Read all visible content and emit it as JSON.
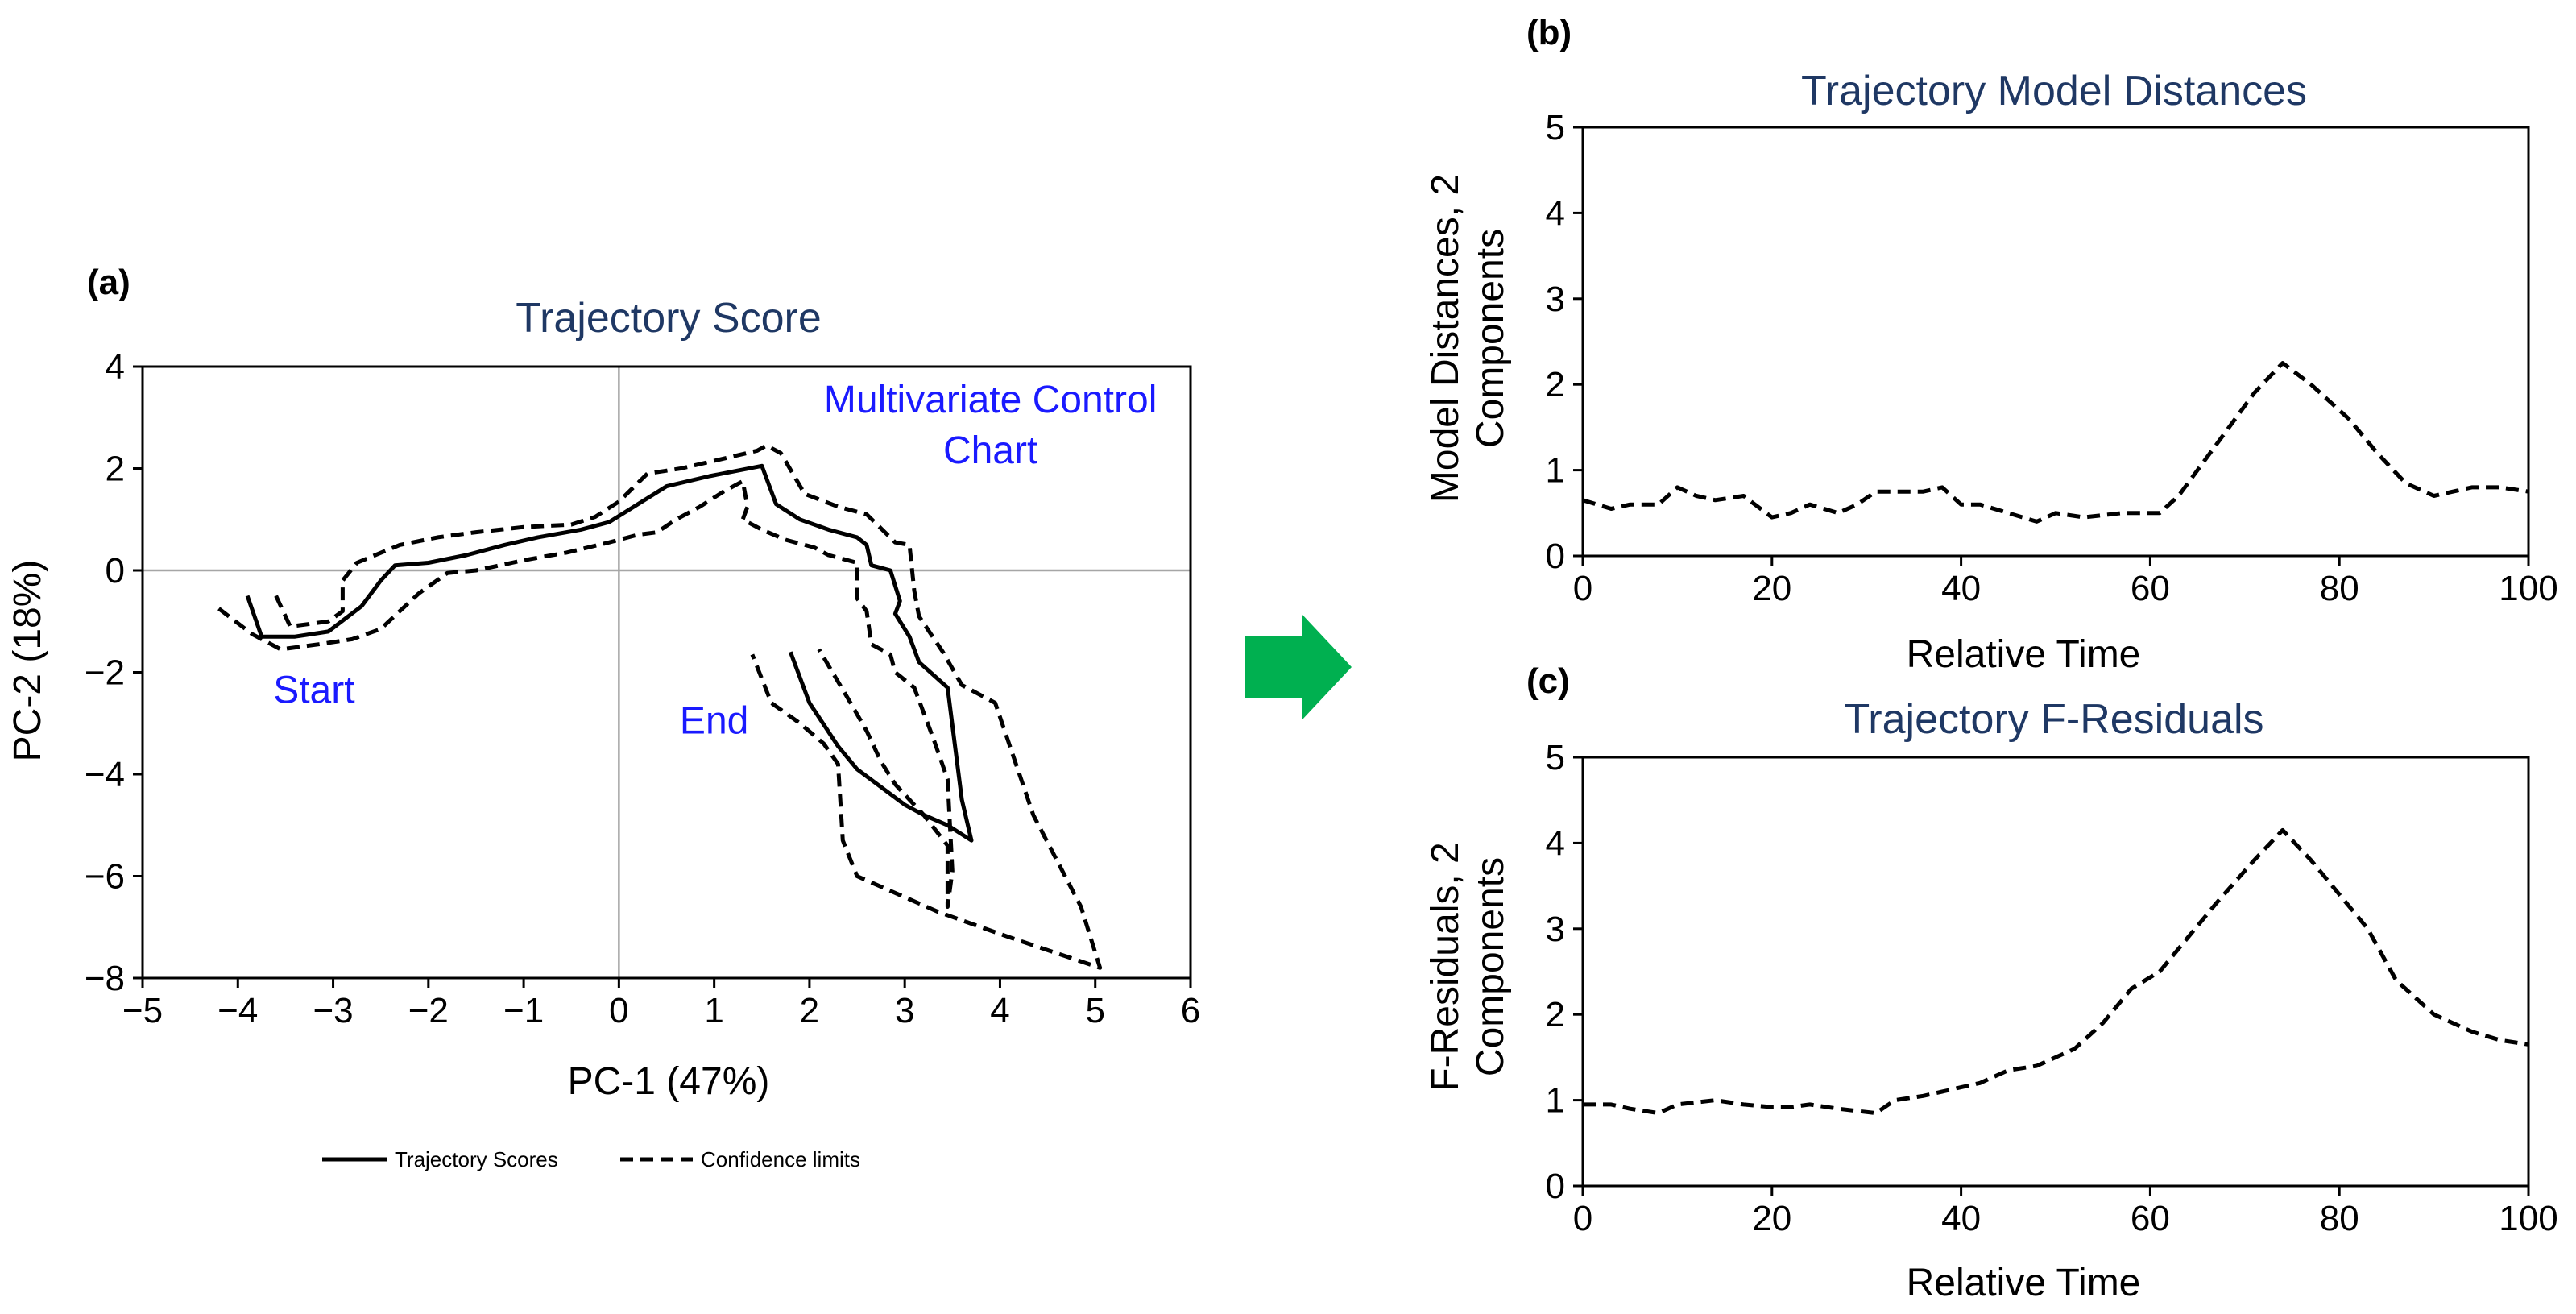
{
  "colors": {
    "title": "#1f3864",
    "annotation": "#1a1aff",
    "arrow": "#00b050",
    "line": "#000000",
    "zero_line": "#a6a6a6"
  },
  "arrow_icon": "green-right-arrow",
  "chart_data": [
    {
      "id": "a",
      "panel_label": "(a)",
      "type": "line",
      "title": "Trajectory Score",
      "xlabel": "PC-1 (47%)",
      "ylabel": "PC-2 (18%)",
      "xlim": [
        -5,
        6
      ],
      "ylim": [
        -8,
        4
      ],
      "xticks": [
        -5,
        -4,
        -3,
        -2,
        -1,
        0,
        1,
        2,
        3,
        4,
        5,
        6
      ],
      "yticks": [
        -8,
        -6,
        -4,
        -2,
        0,
        2,
        4
      ],
      "xtick_labels": [
        "−5",
        "−4",
        "−3",
        "−2",
        "−1",
        "0",
        "1",
        "2",
        "3",
        "4",
        "5",
        "6"
      ],
      "ytick_labels": [
        "−8",
        "−6",
        "−4",
        "−2",
        "0",
        "2",
        "4"
      ],
      "zero_lines": true,
      "annotations": [
        {
          "text": "Multivariate Control",
          "x": 3.9,
          "y": 3.1
        },
        {
          "text": "Chart",
          "x": 3.9,
          "y": 2.1
        },
        {
          "text": "Start",
          "x": -3.2,
          "y": -2.6
        },
        {
          "text": "End",
          "x": 1.0,
          "y": -3.2
        }
      ],
      "legend": {
        "position": "bottom",
        "items": [
          {
            "label": "Trajectory Scores",
            "style": "solid"
          },
          {
            "label": "Confidence limits",
            "style": "dashed"
          }
        ]
      },
      "series": [
        {
          "style": "solid",
          "points": [
            [
              -3.9,
              -0.5
            ],
            [
              -3.75,
              -1.3
            ],
            [
              -3.4,
              -1.3
            ],
            [
              -3.05,
              -1.2
            ],
            [
              -2.7,
              -0.7
            ],
            [
              -2.5,
              -0.2
            ],
            [
              -2.35,
              0.1
            ],
            [
              -2.0,
              0.15
            ],
            [
              -1.6,
              0.3
            ],
            [
              -1.2,
              0.5
            ],
            [
              -0.85,
              0.65
            ],
            [
              -0.4,
              0.8
            ],
            [
              -0.1,
              0.95
            ],
            [
              0.2,
              1.3
            ],
            [
              0.5,
              1.65
            ],
            [
              0.95,
              1.85
            ],
            [
              1.5,
              2.05
            ],
            [
              1.65,
              1.3
            ],
            [
              1.9,
              1.0
            ],
            [
              2.2,
              0.8
            ],
            [
              2.5,
              0.65
            ],
            [
              2.6,
              0.5
            ],
            [
              2.65,
              0.1
            ],
            [
              2.85,
              0.0
            ],
            [
              2.95,
              -0.6
            ],
            [
              2.9,
              -0.85
            ],
            [
              3.05,
              -1.3
            ],
            [
              3.15,
              -1.8
            ],
            [
              3.45,
              -2.3
            ],
            [
              3.6,
              -4.5
            ],
            [
              3.7,
              -5.3
            ],
            [
              3.45,
              -5.0
            ],
            [
              3.2,
              -4.8
            ],
            [
              3.0,
              -4.6
            ],
            [
              2.5,
              -3.9
            ],
            [
              2.3,
              -3.45
            ],
            [
              2.0,
              -2.6
            ],
            [
              1.8,
              -1.6
            ]
          ]
        },
        {
          "style": "dashed",
          "points": [
            [
              -3.6,
              -0.5
            ],
            [
              -3.45,
              -1.1
            ],
            [
              -3.05,
              -1.0
            ],
            [
              -2.9,
              -0.8
            ],
            [
              -2.9,
              -0.2
            ],
            [
              -2.75,
              0.15
            ],
            [
              -2.3,
              0.5
            ],
            [
              -1.9,
              0.65
            ],
            [
              -1.5,
              0.75
            ],
            [
              -1.0,
              0.85
            ],
            [
              -0.5,
              0.9
            ],
            [
              -0.25,
              1.05
            ],
            [
              0.0,
              1.35
            ],
            [
              0.3,
              1.9
            ],
            [
              0.65,
              2.0
            ],
            [
              1.0,
              2.15
            ],
            [
              1.45,
              2.35
            ],
            [
              1.55,
              2.45
            ],
            [
              1.7,
              2.3
            ],
            [
              1.95,
              1.5
            ],
            [
              2.3,
              1.25
            ],
            [
              2.6,
              1.1
            ],
            [
              2.9,
              0.55
            ],
            [
              3.05,
              0.5
            ],
            [
              3.1,
              -0.4
            ],
            [
              3.15,
              -0.9
            ],
            [
              3.4,
              -1.6
            ],
            [
              3.6,
              -2.25
            ],
            [
              3.95,
              -2.6
            ],
            [
              4.35,
              -4.8
            ],
            [
              4.85,
              -6.6
            ],
            [
              5.05,
              -7.8
            ],
            [
              4.1,
              -7.2
            ],
            [
              3.35,
              -6.7
            ],
            [
              2.5,
              -6.0
            ],
            [
              2.35,
              -5.3
            ],
            [
              2.3,
              -3.8
            ],
            [
              2.15,
              -3.4
            ],
            [
              1.9,
              -3.0
            ],
            [
              1.6,
              -2.6
            ],
            [
              1.4,
              -1.65
            ]
          ]
        },
        {
          "style": "dashed",
          "points": [
            [
              -4.2,
              -0.75
            ],
            [
              -3.85,
              -1.25
            ],
            [
              -3.55,
              -1.55
            ],
            [
              -3.15,
              -1.45
            ],
            [
              -2.8,
              -1.35
            ],
            [
              -2.5,
              -1.15
            ],
            [
              -2.3,
              -0.8
            ],
            [
              -2.1,
              -0.45
            ],
            [
              -1.8,
              -0.05
            ],
            [
              -1.5,
              0.0
            ],
            [
              -1.0,
              0.2
            ],
            [
              -0.55,
              0.35
            ],
            [
              -0.1,
              0.55
            ],
            [
              0.2,
              0.7
            ],
            [
              0.4,
              0.75
            ],
            [
              0.6,
              1.0
            ],
            [
              0.85,
              1.25
            ],
            [
              1.1,
              1.55
            ],
            [
              1.3,
              1.75
            ],
            [
              1.35,
              1.25
            ],
            [
              1.3,
              1.0
            ],
            [
              1.5,
              0.8
            ],
            [
              1.75,
              0.6
            ],
            [
              2.05,
              0.45
            ],
            [
              2.2,
              0.3
            ],
            [
              2.5,
              0.15
            ],
            [
              2.5,
              -0.55
            ],
            [
              2.6,
              -0.8
            ],
            [
              2.65,
              -1.45
            ],
            [
              2.85,
              -1.65
            ],
            [
              2.9,
              -2.0
            ],
            [
              3.1,
              -2.3
            ],
            [
              3.3,
              -3.3
            ],
            [
              3.45,
              -4.1
            ],
            [
              3.5,
              -5.9
            ],
            [
              3.45,
              -6.6
            ],
            [
              3.45,
              -5.4
            ],
            [
              3.2,
              -4.8
            ],
            [
              2.9,
              -4.2
            ],
            [
              2.75,
              -3.75
            ],
            [
              2.6,
              -3.15
            ],
            [
              2.4,
              -2.5
            ],
            [
              2.1,
              -1.55
            ]
          ]
        }
      ]
    },
    {
      "id": "b",
      "panel_label": "(b)",
      "type": "line",
      "title": "Trajectory Model Distances",
      "xlabel": "Relative Time",
      "ylabel": "Model Distances, 2 Components",
      "ylabel_lines": [
        "Model Distances, 2",
        "Components"
      ],
      "xlim": [
        0,
        100
      ],
      "ylim": [
        0,
        5
      ],
      "xticks": [
        0,
        20,
        40,
        60,
        80,
        100
      ],
      "yticks": [
        0,
        1,
        2,
        3,
        4,
        5
      ],
      "xtick_labels": [
        "0",
        "20",
        "40",
        "60",
        "80",
        "100"
      ],
      "ytick_labels": [
        "0",
        "1",
        "2",
        "3",
        "4",
        "5"
      ],
      "series": [
        {
          "style": "dashed",
          "x": [
            0,
            3,
            5,
            8,
            10,
            12,
            14,
            17,
            20,
            22,
            24,
            27,
            29,
            31,
            33,
            36,
            38,
            40,
            42,
            45,
            48,
            50,
            53,
            57,
            61,
            63,
            67,
            71,
            74,
            77,
            81,
            84,
            87,
            90,
            94,
            97,
            100
          ],
          "y": [
            0.65,
            0.55,
            0.6,
            0.6,
            0.8,
            0.7,
            0.65,
            0.7,
            0.45,
            0.5,
            0.6,
            0.5,
            0.6,
            0.75,
            0.75,
            0.75,
            0.8,
            0.6,
            0.6,
            0.5,
            0.4,
            0.5,
            0.45,
            0.5,
            0.5,
            0.7,
            1.3,
            1.9,
            2.25,
            2.0,
            1.6,
            1.2,
            0.85,
            0.7,
            0.8,
            0.8,
            0.75
          ]
        }
      ]
    },
    {
      "id": "c",
      "panel_label": "(c)",
      "type": "line",
      "title": "Trajectory F-Residuals",
      "xlabel": "Relative Time",
      "ylabel": "F-Residuals, 2 Components",
      "ylabel_lines": [
        "F-Residuals, 2",
        "Components"
      ],
      "xlim": [
        0,
        100
      ],
      "ylim": [
        0,
        5
      ],
      "xticks": [
        0,
        20,
        40,
        60,
        80,
        100
      ],
      "yticks": [
        0,
        1,
        2,
        3,
        4,
        5
      ],
      "xtick_labels": [
        "0",
        "20",
        "40",
        "60",
        "80",
        "100"
      ],
      "ytick_labels": [
        "0",
        "1",
        "2",
        "3",
        "4",
        "5"
      ],
      "series": [
        {
          "style": "dashed",
          "x": [
            0,
            3,
            5,
            8,
            10,
            14,
            17,
            20,
            22,
            24,
            27,
            31,
            33,
            36,
            38,
            40,
            42,
            45,
            48,
            50,
            52,
            55,
            58,
            61,
            64,
            67,
            71,
            74,
            77,
            80,
            83,
            86,
            90,
            94,
            97,
            100
          ],
          "y": [
            0.95,
            0.95,
            0.9,
            0.85,
            0.95,
            1.0,
            0.95,
            0.92,
            0.92,
            0.95,
            0.9,
            0.85,
            1.0,
            1.05,
            1.1,
            1.15,
            1.2,
            1.35,
            1.4,
            1.5,
            1.6,
            1.9,
            2.3,
            2.5,
            2.9,
            3.3,
            3.8,
            4.15,
            3.8,
            3.4,
            3.0,
            2.4,
            2.0,
            1.8,
            1.7,
            1.65
          ]
        }
      ]
    }
  ]
}
